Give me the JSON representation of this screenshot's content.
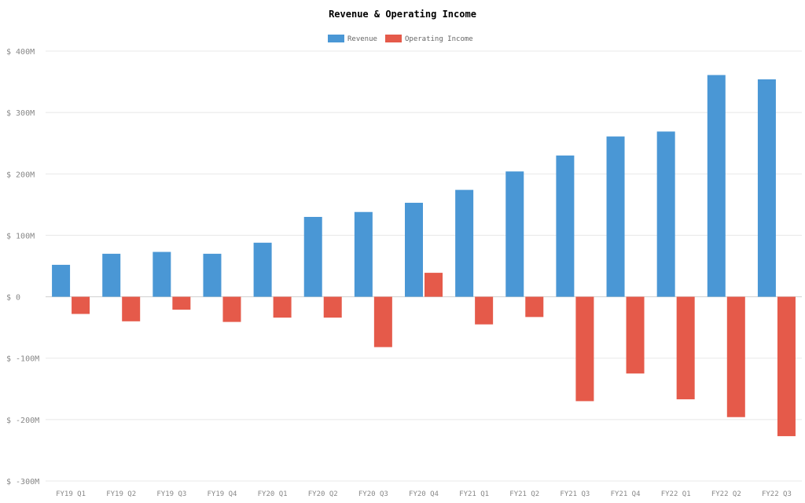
{
  "chart_data": {
    "type": "bar",
    "title": "Revenue & Operating Income",
    "xlabel": "",
    "ylabel": "",
    "ylim": [
      -300,
      400
    ],
    "y_ticks": [
      400,
      300,
      200,
      100,
      0,
      -100,
      -200,
      -300
    ],
    "y_tick_labels": [
      "$ 400M",
      "$ 300M",
      "$ 200M",
      "$ 100M",
      "$ 0",
      "$ -100M",
      "$ -200M",
      "$ -300M"
    ],
    "grid": true,
    "legend_position": "top-center",
    "categories": [
      "FY19 Q1",
      "FY19 Q2",
      "FY19 Q3",
      "FY19 Q4",
      "FY20 Q1",
      "FY20 Q2",
      "FY20 Q3",
      "FY20 Q4",
      "FY21 Q1",
      "FY21 Q2",
      "FY21 Q3",
      "FY21 Q4",
      "FY22 Q1",
      "FY22 Q2",
      "FY22 Q3"
    ],
    "series": [
      {
        "name": "Revenue",
        "color": "#4a97d5",
        "values": [
          52,
          70,
          73,
          70,
          88,
          130,
          138,
          153,
          174,
          204,
          230,
          261,
          269,
          361,
          354
        ]
      },
      {
        "name": "Operating Income",
        "color": "#e55a4a",
        "values": [
          -28,
          -40,
          -21,
          -41,
          -34,
          -34,
          -82,
          39,
          -45,
          -33,
          -170,
          -125,
          -167,
          -196,
          -227
        ]
      }
    ]
  }
}
